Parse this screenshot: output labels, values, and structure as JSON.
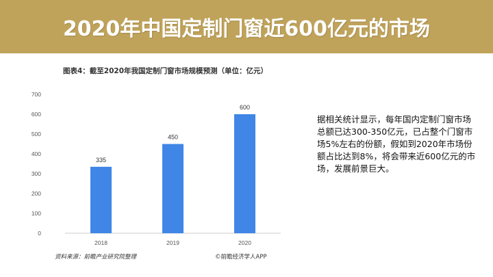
{
  "banner": {
    "title": "2020年中国定制门窗近600亿元的市场"
  },
  "chart_data": {
    "type": "bar",
    "title": "图表4：截至2020年我国定制门窗市场规模预测（单位：亿元）",
    "categories": [
      "2018",
      "2019",
      "2020"
    ],
    "values": [
      335,
      450,
      600
    ],
    "data_labels": [
      "335",
      "450",
      "600"
    ],
    "ylim": [
      0,
      700
    ],
    "yticks": [
      "0",
      "100",
      "200",
      "300",
      "400",
      "500",
      "600",
      "700"
    ],
    "grid": false,
    "bar_color": "#3f86e6",
    "source": "资料来源：前瞻产业研究院整理",
    "brand": "©前瞻经济学人APP"
  },
  "side_text": "据相关统计显示，每年国内定制门窗市场总额已达300-350亿元，已占整个门窗市场5%左右的份额，假如到2020年市场份额占比达到8%，将会带来近600亿元的市场，发展前景巨大。",
  "colors": {
    "banner": "#c0a35a",
    "bar": "#3f86e6"
  }
}
